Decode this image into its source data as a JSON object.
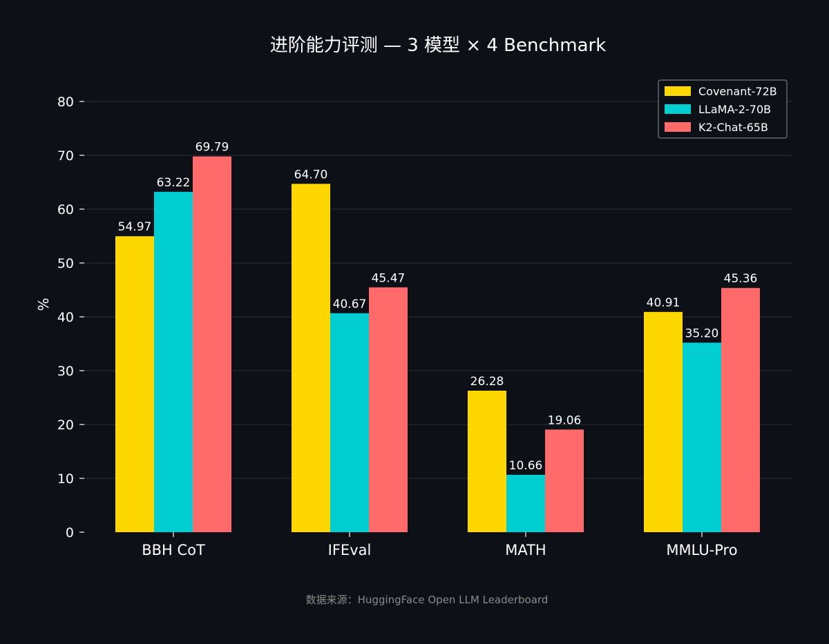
{
  "chart_data": {
    "type": "bar",
    "title": "进阶能力评测 — 3 模型 × 4 Benchmark",
    "categories": [
      "BBH CoT",
      "IFEval",
      "MATH",
      "MMLU-Pro"
    ],
    "series": [
      {
        "name": "Covenant-72B",
        "color": "#FFD700",
        "values": [
          54.97,
          64.7,
          26.28,
          40.91
        ],
        "labels": [
          "54.97",
          "64.70",
          "26.28",
          "40.91"
        ]
      },
      {
        "name": "LLaMA-2-70B",
        "color": "#00CED1",
        "values": [
          63.22,
          40.67,
          10.66,
          35.2
        ],
        "labels": [
          "63.22",
          "40.67",
          "10.66",
          "35.20"
        ]
      },
      {
        "name": "K2-Chat-65B",
        "color": "#FF6B6B",
        "values": [
          69.79,
          45.47,
          19.06,
          45.36
        ],
        "labels": [
          "69.79",
          "45.47",
          "19.06",
          "45.36"
        ]
      }
    ],
    "xlabel": "",
    "ylabel": "%",
    "ylim": [
      0,
      80
    ],
    "yticks": [
      "0",
      "10",
      "20",
      "30",
      "40",
      "50",
      "60",
      "70",
      "80"
    ],
    "grid": true,
    "legend_position": "top-right",
    "source_note": "数据来源：HuggingFace Open LLM Leaderboard"
  },
  "colors": {
    "background": "#0d1017",
    "text": "#ffffff",
    "grid": "#2a2e36",
    "source_text": "#8a8a8a",
    "legend_border": "#8a8f98"
  }
}
